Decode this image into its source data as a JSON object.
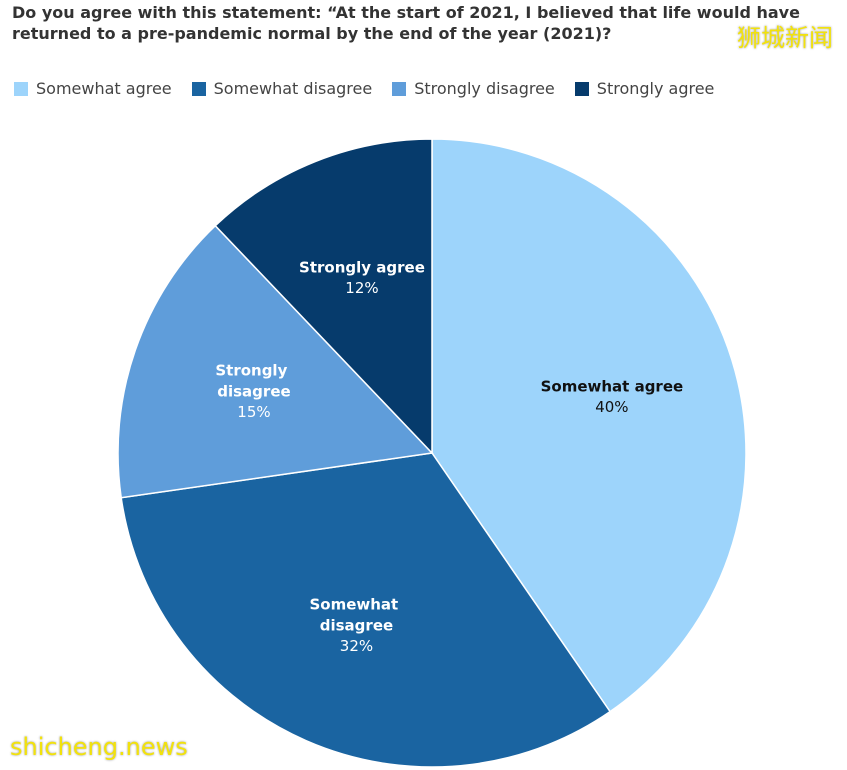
{
  "chart_data": {
    "type": "pie",
    "title": "Do you agree with this statement: “At the start of 2021, I believed that life would have returned to a pre-pandemic normal by the end of the year (2021)?",
    "categories": [
      "Somewhat agree",
      "Somewhat disagree",
      "Strongly disagree",
      "Strongly agree"
    ],
    "values": [
      40,
      32,
      15,
      12
    ],
    "value_labels": [
      "40%",
      "32%",
      "15%",
      "12%"
    ],
    "colors": [
      "#9dd4fb",
      "#1a64a1",
      "#5f9dda",
      "#063b6c"
    ],
    "legend": "top-left"
  },
  "watermarks": [
    "狮城新闻",
    "shicheng.news"
  ]
}
